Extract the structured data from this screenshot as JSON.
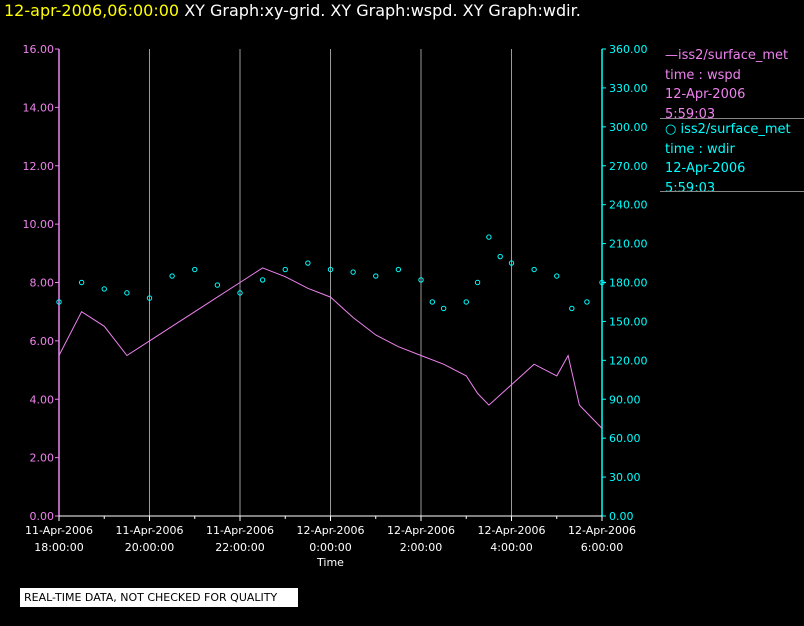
{
  "header": {
    "timestamp": "12-apr-2006,06:00:00",
    "graphs": "XY Graph:xy-grid.  XY Graph:wspd.  XY Graph:wdir."
  },
  "note": "REAL-TIME DATA, NOT CHECKED FOR QUALITY",
  "legend": {
    "wspd": {
      "name": "iss2/surface_met",
      "line2": "time : wspd",
      "date": "12-Apr-2006",
      "time": "5:59:03",
      "color": "#ee82ee"
    },
    "wdir": {
      "name": "iss2/surface_met",
      "line2": "time : wdir",
      "date": "12-Apr-2006",
      "time": "5:59:03",
      "color": "#00ffff"
    }
  },
  "chart_data": {
    "type": "line",
    "xlabel": "Time",
    "x_range": [
      "2006-04-11 18:00",
      "2006-04-12 06:00"
    ],
    "x_ticks": [
      {
        "date": "11-Apr-2006",
        "time": "18:00:00"
      },
      {
        "date": "11-Apr-2006",
        "time": "20:00:00"
      },
      {
        "date": "11-Apr-2006",
        "time": "22:00:00"
      },
      {
        "date": "12-Apr-2006",
        "time": "0:00:00"
      },
      {
        "date": "12-Apr-2006",
        "time": "2:00:00"
      },
      {
        "date": "12-Apr-2006",
        "time": "4:00:00"
      },
      {
        "date": "12-Apr-2006",
        "time": "6:00:00"
      }
    ],
    "y_left": {
      "range": [
        0,
        16
      ],
      "ticks": [
        "0.00",
        "2.00",
        "4.00",
        "6.00",
        "8.00",
        "10.00",
        "12.00",
        "14.00",
        "16.00"
      ],
      "color": "#ee82ee"
    },
    "y_right": {
      "range": [
        0,
        360
      ],
      "ticks": [
        "0.00",
        "30.00",
        "60.00",
        "90.00",
        "120.00",
        "150.00",
        "180.00",
        "210.00",
        "240.00",
        "270.00",
        "300.00",
        "330.00",
        "360.00"
      ],
      "color": "#00ffff"
    },
    "grid": "vertical",
    "legend_position": "right",
    "series": [
      {
        "key": "wspd",
        "style": "line",
        "axis": "left",
        "x": [
          "2006-04-11 18:00",
          "2006-04-11 18:30",
          "2006-04-11 19:00",
          "2006-04-11 19:30",
          "2006-04-11 20:00",
          "2006-04-11 20:30",
          "2006-04-11 21:00",
          "2006-04-11 21:30",
          "2006-04-11 22:00",
          "2006-04-11 22:30",
          "2006-04-11 23:00",
          "2006-04-11 23:30",
          "2006-04-12 00:00",
          "2006-04-12 00:30",
          "2006-04-12 01:00",
          "2006-04-12 01:30",
          "2006-04-12 02:00",
          "2006-04-12 02:30",
          "2006-04-12 03:00",
          "2006-04-12 03:15",
          "2006-04-12 03:30",
          "2006-04-12 04:00",
          "2006-04-12 04:30",
          "2006-04-12 05:00",
          "2006-04-12 05:15",
          "2006-04-12 05:30",
          "2006-04-12 06:00"
        ],
        "values": [
          5.5,
          7.0,
          6.5,
          5.5,
          6.0,
          6.5,
          7.0,
          7.5,
          8.0,
          8.5,
          8.2,
          7.8,
          7.5,
          6.8,
          6.2,
          5.8,
          5.5,
          5.2,
          4.8,
          4.2,
          3.8,
          4.5,
          5.2,
          4.8,
          5.5,
          3.8,
          3.0
        ]
      },
      {
        "key": "wdir",
        "style": "markers",
        "axis": "right",
        "x": [
          "2006-04-11 18:00",
          "2006-04-11 18:30",
          "2006-04-11 19:00",
          "2006-04-11 19:30",
          "2006-04-11 20:00",
          "2006-04-11 20:30",
          "2006-04-11 21:00",
          "2006-04-11 21:30",
          "2006-04-11 22:00",
          "2006-04-11 22:30",
          "2006-04-11 23:00",
          "2006-04-11 23:30",
          "2006-04-12 00:00",
          "2006-04-12 00:30",
          "2006-04-12 01:00",
          "2006-04-12 01:30",
          "2006-04-12 02:00",
          "2006-04-12 02:15",
          "2006-04-12 02:30",
          "2006-04-12 03:00",
          "2006-04-12 03:15",
          "2006-04-12 03:30",
          "2006-04-12 03:45",
          "2006-04-12 04:00",
          "2006-04-12 04:30",
          "2006-04-12 05:00",
          "2006-04-12 05:20",
          "2006-04-12 05:40",
          "2006-04-12 06:00"
        ],
        "values": [
          165,
          180,
          175,
          172,
          168,
          185,
          190,
          178,
          172,
          182,
          190,
          195,
          190,
          188,
          185,
          190,
          182,
          165,
          160,
          165,
          180,
          215,
          200,
          195,
          190,
          185,
          160,
          165,
          180
        ]
      }
    ]
  }
}
